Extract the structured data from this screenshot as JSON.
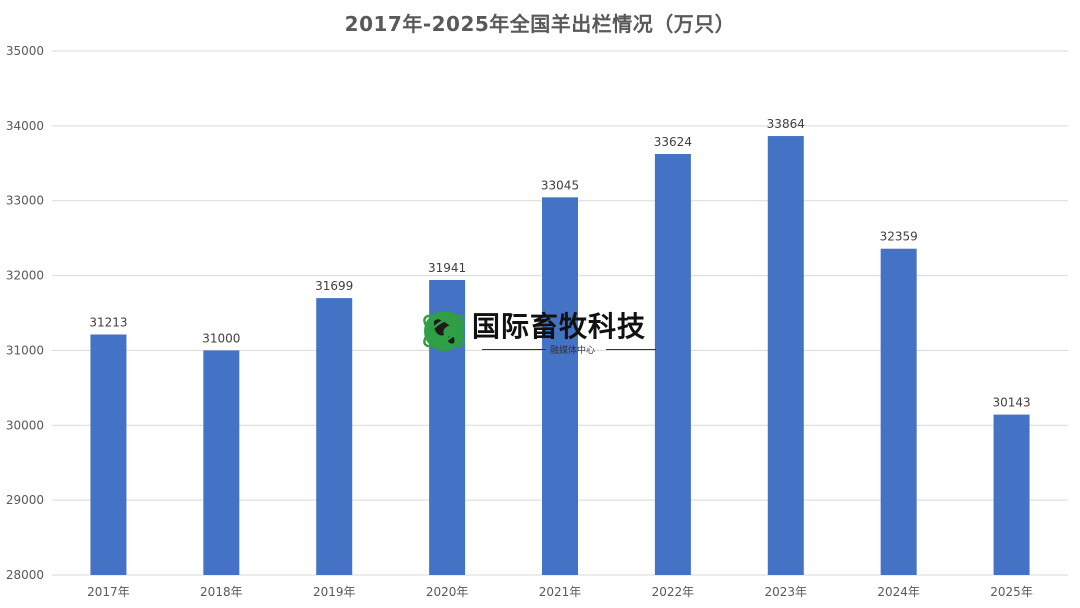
{
  "chart_data": {
    "type": "bar",
    "title": "2017年-2025年全国羊出栏情况（万只）",
    "categories": [
      "2017年",
      "2018年",
      "2019年",
      "2020年",
      "2021年",
      "2022年",
      "2023年",
      "2024年",
      "2025年"
    ],
    "series": [
      {
        "values": [
          31213,
          31000,
          31699,
          31941,
          33045,
          33624,
          33864,
          32359,
          30143
        ]
      }
    ],
    "ylim": [
      28000,
      35000
    ],
    "yticks": [
      28000,
      29000,
      30000,
      31000,
      32000,
      33000,
      34000,
      35000
    ],
    "grid": true,
    "data_labels": true,
    "bar_color": "#4472c4"
  },
  "watermark": {
    "name": "国际畜牧科技",
    "subtitle": "融媒体中心",
    "logo_icon": "globe-icon"
  }
}
